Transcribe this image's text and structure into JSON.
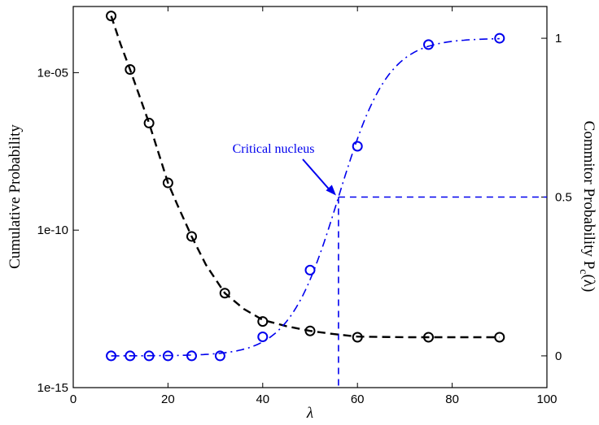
{
  "chart_data": {
    "type": "line",
    "xlabel": "λ",
    "ylabel_left": "Cumulative Probability",
    "ylabel_right_main": "Commitor Probability P",
    "ylabel_right_sub": "c",
    "ylabel_right_tail": "(λ)",
    "xlim": [
      0,
      100
    ],
    "ylim_left_log10": [
      -15,
      -2.9
    ],
    "ylim_right": [
      -0.1,
      1.1
    ],
    "left_scale": "log",
    "x_ticks": [
      0,
      20,
      40,
      60,
      80,
      100
    ],
    "y_left_ticks": [
      {
        "exp": -5,
        "label": "1e-05"
      },
      {
        "exp": -10,
        "label": "1e-10"
      },
      {
        "exp": -15,
        "label": "1e-15"
      }
    ],
    "y_right_ticks": [
      {
        "value": 0,
        "label": "0"
      },
      {
        "value": 0.5,
        "label": "0.5"
      },
      {
        "value": 1,
        "label": "1"
      }
    ],
    "series": [
      {
        "axis": "left",
        "color": "#000000",
        "x": [
          8,
          12,
          16,
          20,
          25,
          32,
          40,
          50,
          60,
          75,
          90
        ],
        "y_log10": [
          -3.2,
          -4.9,
          -6.6,
          -8.5,
          -10.2,
          -12.0,
          -12.9,
          -13.2,
          -13.4,
          -13.4,
          -13.4
        ]
      },
      {
        "axis": "right",
        "color": "#0000ee",
        "x": [
          8,
          12,
          16,
          20,
          25,
          31,
          40,
          50,
          60,
          75,
          90
        ],
        "y": [
          0,
          0,
          0,
          0,
          0,
          0,
          0.06,
          0.27,
          0.66,
          0.98,
          1.0
        ]
      }
    ],
    "fit_curves": [
      {
        "axis": "left",
        "color": "#000000",
        "x": [
          8,
          10,
          12,
          14,
          16,
          18,
          20,
          22,
          25,
          28,
          32,
          36,
          40,
          45,
          50,
          55,
          60,
          70,
          80,
          90
        ],
        "y_log10": [
          -3.2,
          -4.1,
          -4.9,
          -5.75,
          -6.6,
          -7.55,
          -8.5,
          -9.2,
          -10.2,
          -11.1,
          -12.0,
          -12.5,
          -12.85,
          -13.05,
          -13.2,
          -13.3,
          -13.38,
          -13.4,
          -13.4,
          -13.4
        ]
      },
      {
        "axis": "right",
        "color": "#0000ee",
        "model": "logistic",
        "center": 56,
        "scale": 5.2,
        "x_range": [
          8,
          90
        ]
      }
    ],
    "reference_lines": {
      "color": "#0000ee",
      "x": 56,
      "y_right": 0.5
    },
    "annotations": [
      {
        "text": "Critical nucleus",
        "color": "#0000ee",
        "points_to": {
          "x": 56,
          "y_right": 0.5
        }
      }
    ]
  }
}
